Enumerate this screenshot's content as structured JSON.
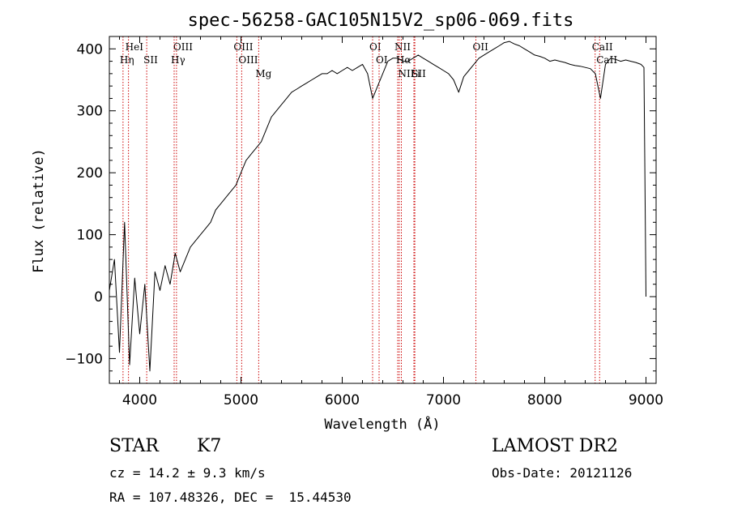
{
  "chart_data": {
    "type": "line",
    "title": "spec-56258-GAC105N15V2_sp06-069.fits",
    "xlabel": "Wavelength (Å)",
    "ylabel": "Flux (relative)",
    "xlim": [
      3700,
      9100
    ],
    "ylim": [
      -140,
      420
    ],
    "xticks": [
      4000,
      5000,
      6000,
      7000,
      8000,
      9000
    ],
    "yticks": [
      -100,
      0,
      100,
      200,
      300,
      400
    ],
    "grid": false,
    "line_color": "#000000",
    "marker_color": "#cc0000",
    "series": [
      {
        "x": [
          3700,
          3750,
          3800,
          3850,
          3900,
          3950,
          4000,
          4050,
          4100,
          4150,
          4200,
          4250,
          4300,
          4350,
          4400,
          4450,
          4500,
          4550,
          4600,
          4650,
          4700,
          4750,
          4800,
          4850,
          4900,
          4950,
          5000,
          5050,
          5100,
          5150,
          5200,
          5250,
          5300,
          5350,
          5400,
          5450,
          5500,
          5550,
          5600,
          5650,
          5700,
          5750,
          5800,
          5850,
          5900,
          5950,
          6000,
          6050,
          6100,
          6150,
          6200,
          6250,
          6300,
          6350,
          6400,
          6450,
          6500,
          6550,
          6600,
          6650,
          6700,
          6750,
          6800,
          6850,
          6900,
          6950,
          7000,
          7050,
          7100,
          7150,
          7200,
          7250,
          7300,
          7350,
          7400,
          7450,
          7500,
          7550,
          7600,
          7650,
          7700,
          7750,
          7800,
          7850,
          7900,
          7950,
          8000,
          8050,
          8100,
          8150,
          8200,
          8250,
          8300,
          8350,
          8400,
          8450,
          8500,
          8550,
          8600,
          8650,
          8700,
          8750,
          8800,
          8850,
          8900,
          8950,
          8980,
          9000
        ],
        "y": [
          10,
          60,
          -90,
          120,
          -110,
          30,
          -60,
          20,
          -120,
          40,
          10,
          50,
          20,
          70,
          40,
          60,
          80,
          90,
          100,
          110,
          120,
          140,
          150,
          160,
          170,
          180,
          200,
          220,
          230,
          240,
          250,
          270,
          290,
          300,
          310,
          320,
          330,
          335,
          340,
          345,
          350,
          355,
          360,
          360,
          365,
          360,
          365,
          370,
          365,
          370,
          375,
          360,
          320,
          340,
          360,
          380,
          385,
          385,
          380,
          380,
          385,
          390,
          385,
          380,
          375,
          370,
          365,
          360,
          350,
          330,
          355,
          365,
          375,
          385,
          390,
          395,
          400,
          405,
          410,
          412,
          408,
          405,
          400,
          395,
          390,
          388,
          385,
          380,
          382,
          380,
          378,
          375,
          373,
          372,
          370,
          368,
          360,
          320,
          375,
          385,
          383,
          380,
          382,
          380,
          378,
          375,
          370,
          0
        ]
      }
    ],
    "lines": [
      {
        "label": "HeI",
        "x": 3889
      },
      {
        "label": "Hη",
        "x": 3835
      },
      {
        "label": "SII",
        "x": 4069
      },
      {
        "label": "OIII",
        "x": 4363
      },
      {
        "label": "Hγ",
        "x": 4340
      },
      {
        "label": "OIII",
        "x": 4959
      },
      {
        "label": "OIII",
        "x": 5007
      },
      {
        "label": "Mg",
        "x": 5175
      },
      {
        "label": "OI",
        "x": 6300
      },
      {
        "label": "OI",
        "x": 6364
      },
      {
        "label": "NII",
        "x": 6548
      },
      {
        "label": "Hα",
        "x": 6563
      },
      {
        "label": "NII",
        "x": 6584
      },
      {
        "label": "Li",
        "x": 6708
      },
      {
        "label": "SII",
        "x": 6717
      },
      {
        "label": "OII",
        "x": 7320
      },
      {
        "label": "CaII",
        "x": 8498
      },
      {
        "label": "CaII",
        "x": 8542
      }
    ]
  },
  "info": {
    "class": "STAR",
    "subclass": "K7",
    "survey": "LAMOST DR2",
    "cz": "cz = 14.2 ± 9.3 km/s",
    "obsdate": "Obs-Date: 20121126",
    "radec": "RA = 107.48326, DEC =  15.44530"
  }
}
